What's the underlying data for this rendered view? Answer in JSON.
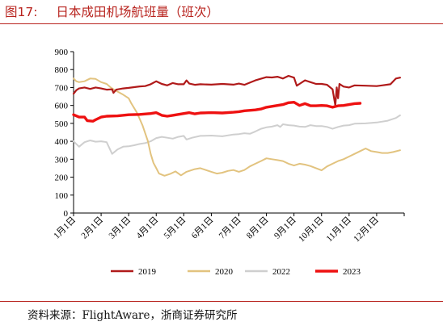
{
  "figure": {
    "number": "图17:",
    "title": "日本成田机场航班量（班次）",
    "source": "资料来源：FlightAware，浙商证券研究所"
  },
  "colors": {
    "accent": "#b8231e",
    "s2019": "#b01a1a",
    "s2020": "#e2c37f",
    "s2022": "#cfcfcf",
    "s2023": "#ee1111"
  },
  "chart_data": {
    "type": "line",
    "title": "",
    "xlabel": "",
    "ylabel": "",
    "ylim": [
      0,
      900
    ],
    "yticks": [
      0,
      100,
      200,
      300,
      400,
      500,
      600,
      700,
      800,
      900
    ],
    "x_domain_months": [
      1,
      13
    ],
    "x_tick_labels": [
      "1月1日",
      "2月1日",
      "3月1日",
      "4月1日",
      "5月1日",
      "6月1日",
      "7月1日",
      "8月1日",
      "9月1日",
      "10月1日",
      "11月1日",
      "12月1日"
    ],
    "legend_position": "bottom",
    "grid": false,
    "series": [
      {
        "name": "2019",
        "color": "#b01a1a",
        "width": 2.2,
        "points": [
          [
            1.0,
            665
          ],
          [
            1.1,
            685
          ],
          [
            1.2,
            695
          ],
          [
            1.4,
            700
          ],
          [
            1.6,
            692
          ],
          [
            1.8,
            700
          ],
          [
            2.0,
            695
          ],
          [
            2.2,
            688
          ],
          [
            2.4,
            690
          ],
          [
            2.45,
            670
          ],
          [
            2.55,
            688
          ],
          [
            2.8,
            695
          ],
          [
            3.0,
            698
          ],
          [
            3.2,
            702
          ],
          [
            3.4,
            706
          ],
          [
            3.6,
            708
          ],
          [
            3.8,
            718
          ],
          [
            4.0,
            735
          ],
          [
            4.2,
            720
          ],
          [
            4.4,
            712
          ],
          [
            4.6,
            725
          ],
          [
            4.8,
            718
          ],
          [
            5.0,
            718
          ],
          [
            5.1,
            740
          ],
          [
            5.2,
            722
          ],
          [
            5.4,
            715
          ],
          [
            5.6,
            718
          ],
          [
            6.0,
            716
          ],
          [
            6.4,
            720
          ],
          [
            6.8,
            716
          ],
          [
            7.0,
            722
          ],
          [
            7.2,
            715
          ],
          [
            7.6,
            740
          ],
          [
            8.0,
            758
          ],
          [
            8.2,
            756
          ],
          [
            8.4,
            760
          ],
          [
            8.6,
            750
          ],
          [
            8.8,
            765
          ],
          [
            9.0,
            755
          ],
          [
            9.1,
            710
          ],
          [
            9.2,
            720
          ],
          [
            9.4,
            740
          ],
          [
            9.6,
            730
          ],
          [
            9.8,
            720
          ],
          [
            10.0,
            720
          ],
          [
            10.2,
            715
          ],
          [
            10.4,
            690
          ],
          [
            10.5,
            600
          ],
          [
            10.55,
            700
          ],
          [
            10.6,
            640
          ],
          [
            10.65,
            720
          ],
          [
            10.8,
            705
          ],
          [
            11.0,
            700
          ],
          [
            11.2,
            712
          ],
          [
            11.6,
            710
          ],
          [
            12.0,
            708
          ],
          [
            12.2,
            712
          ],
          [
            12.5,
            718
          ],
          [
            12.7,
            750
          ],
          [
            12.85,
            755
          ]
        ]
      },
      {
        "name": "2020",
        "color": "#e2c37f",
        "width": 2.0,
        "points": [
          [
            1.0,
            750
          ],
          [
            1.1,
            735
          ],
          [
            1.2,
            730
          ],
          [
            1.4,
            735
          ],
          [
            1.6,
            750
          ],
          [
            1.8,
            748
          ],
          [
            2.0,
            730
          ],
          [
            2.2,
            720
          ],
          [
            2.35,
            700
          ],
          [
            2.5,
            685
          ],
          [
            2.8,
            660
          ],
          [
            3.0,
            640
          ],
          [
            3.1,
            610
          ],
          [
            3.3,
            560
          ],
          [
            3.5,
            490
          ],
          [
            3.7,
            400
          ],
          [
            3.8,
            330
          ],
          [
            3.9,
            280
          ],
          [
            4.0,
            250
          ],
          [
            4.1,
            220
          ],
          [
            4.3,
            208
          ],
          [
            4.5,
            218
          ],
          [
            4.7,
            232
          ],
          [
            4.9,
            210
          ],
          [
            5.1,
            230
          ],
          [
            5.4,
            245
          ],
          [
            5.6,
            250
          ],
          [
            5.8,
            240
          ],
          [
            6.0,
            230
          ],
          [
            6.2,
            220
          ],
          [
            6.4,
            225
          ],
          [
            6.6,
            235
          ],
          [
            6.8,
            240
          ],
          [
            7.0,
            230
          ],
          [
            7.2,
            240
          ],
          [
            7.4,
            260
          ],
          [
            7.6,
            275
          ],
          [
            7.8,
            290
          ],
          [
            8.0,
            305
          ],
          [
            8.2,
            300
          ],
          [
            8.4,
            295
          ],
          [
            8.6,
            290
          ],
          [
            8.8,
            275
          ],
          [
            9.0,
            265
          ],
          [
            9.2,
            275
          ],
          [
            9.4,
            270
          ],
          [
            9.6,
            262
          ],
          [
            9.8,
            250
          ],
          [
            10.0,
            238
          ],
          [
            10.2,
            260
          ],
          [
            10.4,
            275
          ],
          [
            10.6,
            290
          ],
          [
            10.8,
            300
          ],
          [
            11.0,
            315
          ],
          [
            11.2,
            330
          ],
          [
            11.4,
            345
          ],
          [
            11.6,
            360
          ],
          [
            11.8,
            345
          ],
          [
            12.0,
            340
          ],
          [
            12.2,
            335
          ],
          [
            12.4,
            335
          ],
          [
            12.6,
            340
          ],
          [
            12.85,
            350
          ]
        ]
      },
      {
        "name": "2022",
        "color": "#cfcfcf",
        "width": 2.0,
        "points": [
          [
            1.0,
            400
          ],
          [
            1.2,
            370
          ],
          [
            1.4,
            395
          ],
          [
            1.6,
            405
          ],
          [
            1.8,
            398
          ],
          [
            2.0,
            400
          ],
          [
            2.2,
            395
          ],
          [
            2.4,
            330
          ],
          [
            2.6,
            355
          ],
          [
            2.8,
            370
          ],
          [
            3.0,
            372
          ],
          [
            3.2,
            378
          ],
          [
            3.4,
            385
          ],
          [
            3.6,
            390
          ],
          [
            3.8,
            400
          ],
          [
            4.0,
            418
          ],
          [
            4.2,
            425
          ],
          [
            4.4,
            420
          ],
          [
            4.6,
            415
          ],
          [
            4.8,
            425
          ],
          [
            5.0,
            430
          ],
          [
            5.1,
            410
          ],
          [
            5.3,
            420
          ],
          [
            5.6,
            430
          ],
          [
            6.0,
            432
          ],
          [
            6.4,
            428
          ],
          [
            6.8,
            438
          ],
          [
            7.0,
            440
          ],
          [
            7.2,
            445
          ],
          [
            7.4,
            442
          ],
          [
            7.6,
            455
          ],
          [
            7.8,
            470
          ],
          [
            8.0,
            478
          ],
          [
            8.2,
            482
          ],
          [
            8.4,
            490
          ],
          [
            8.5,
            480
          ],
          [
            8.6,
            495
          ],
          [
            8.8,
            490
          ],
          [
            9.0,
            488
          ],
          [
            9.2,
            482
          ],
          [
            9.4,
            480
          ],
          [
            9.6,
            490
          ],
          [
            9.8,
            485
          ],
          [
            10.0,
            485
          ],
          [
            10.2,
            480
          ],
          [
            10.4,
            470
          ],
          [
            10.6,
            480
          ],
          [
            10.8,
            488
          ],
          [
            11.0,
            490
          ],
          [
            11.2,
            498
          ],
          [
            11.6,
            500
          ],
          [
            12.0,
            505
          ],
          [
            12.4,
            515
          ],
          [
            12.7,
            530
          ],
          [
            12.85,
            545
          ]
        ]
      },
      {
        "name": "2023",
        "color": "#ee1111",
        "width": 3.4,
        "points": [
          [
            1.0,
            548
          ],
          [
            1.2,
            535
          ],
          [
            1.4,
            535
          ],
          [
            1.5,
            515
          ],
          [
            1.7,
            512
          ],
          [
            1.8,
            520
          ],
          [
            2.0,
            535
          ],
          [
            2.2,
            540
          ],
          [
            2.6,
            542
          ],
          [
            3.0,
            548
          ],
          [
            3.4,
            550
          ],
          [
            3.8,
            555
          ],
          [
            4.0,
            560
          ],
          [
            4.2,
            545
          ],
          [
            4.4,
            540
          ],
          [
            4.6,
            545
          ],
          [
            4.8,
            550
          ],
          [
            5.0,
            555
          ],
          [
            5.2,
            560
          ],
          [
            5.4,
            553
          ],
          [
            5.6,
            558
          ],
          [
            6.0,
            560
          ],
          [
            6.4,
            558
          ],
          [
            6.8,
            562
          ],
          [
            7.0,
            565
          ],
          [
            7.2,
            570
          ],
          [
            7.6,
            575
          ],
          [
            7.8,
            580
          ],
          [
            8.0,
            590
          ],
          [
            8.2,
            595
          ],
          [
            8.4,
            600
          ],
          [
            8.6,
            605
          ],
          [
            8.8,
            615
          ],
          [
            9.0,
            618
          ],
          [
            9.2,
            600
          ],
          [
            9.4,
            610
          ],
          [
            9.6,
            598
          ],
          [
            9.8,
            598
          ],
          [
            10.0,
            600
          ],
          [
            10.2,
            598
          ],
          [
            10.4,
            590
          ],
          [
            10.6,
            598
          ],
          [
            10.8,
            600
          ],
          [
            11.0,
            605
          ],
          [
            11.2,
            610
          ],
          [
            11.4,
            612
          ]
        ]
      }
    ]
  }
}
